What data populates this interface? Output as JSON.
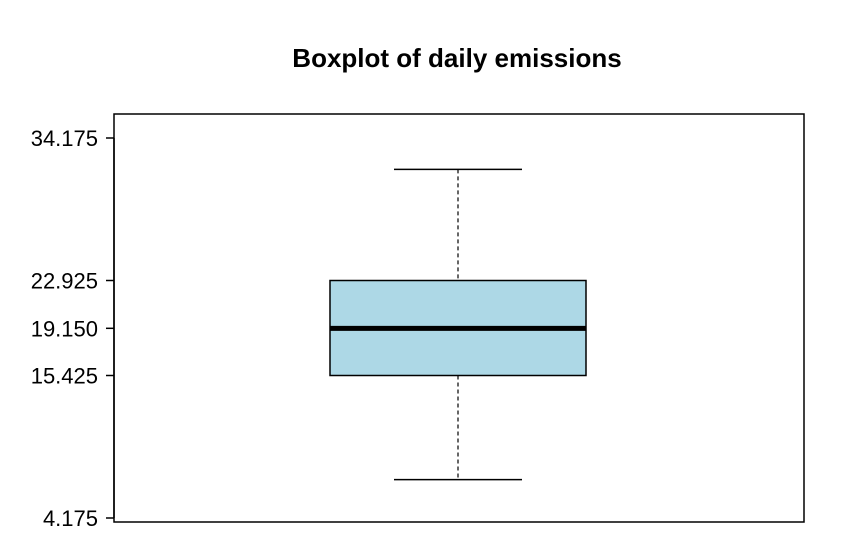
{
  "chart_data": {
    "type": "boxplot",
    "title": "Boxplot of daily emissions",
    "xlabel": "",
    "ylabel": "",
    "grid": false,
    "yticks": [
      34.175,
      22.925,
      19.15,
      15.425,
      4.175
    ],
    "ytick_labels": [
      "34.175",
      "22.925",
      "19.150",
      "15.425",
      "4.175"
    ],
    "box": {
      "whisker_low": 7.2,
      "q1": 15.425,
      "median": 19.15,
      "q3": 22.925,
      "whisker_high": 31.7
    },
    "ylim": [
      4.175,
      34.175
    ],
    "colors": {
      "box_fill": "#add8e6",
      "stroke": "#000000"
    }
  }
}
